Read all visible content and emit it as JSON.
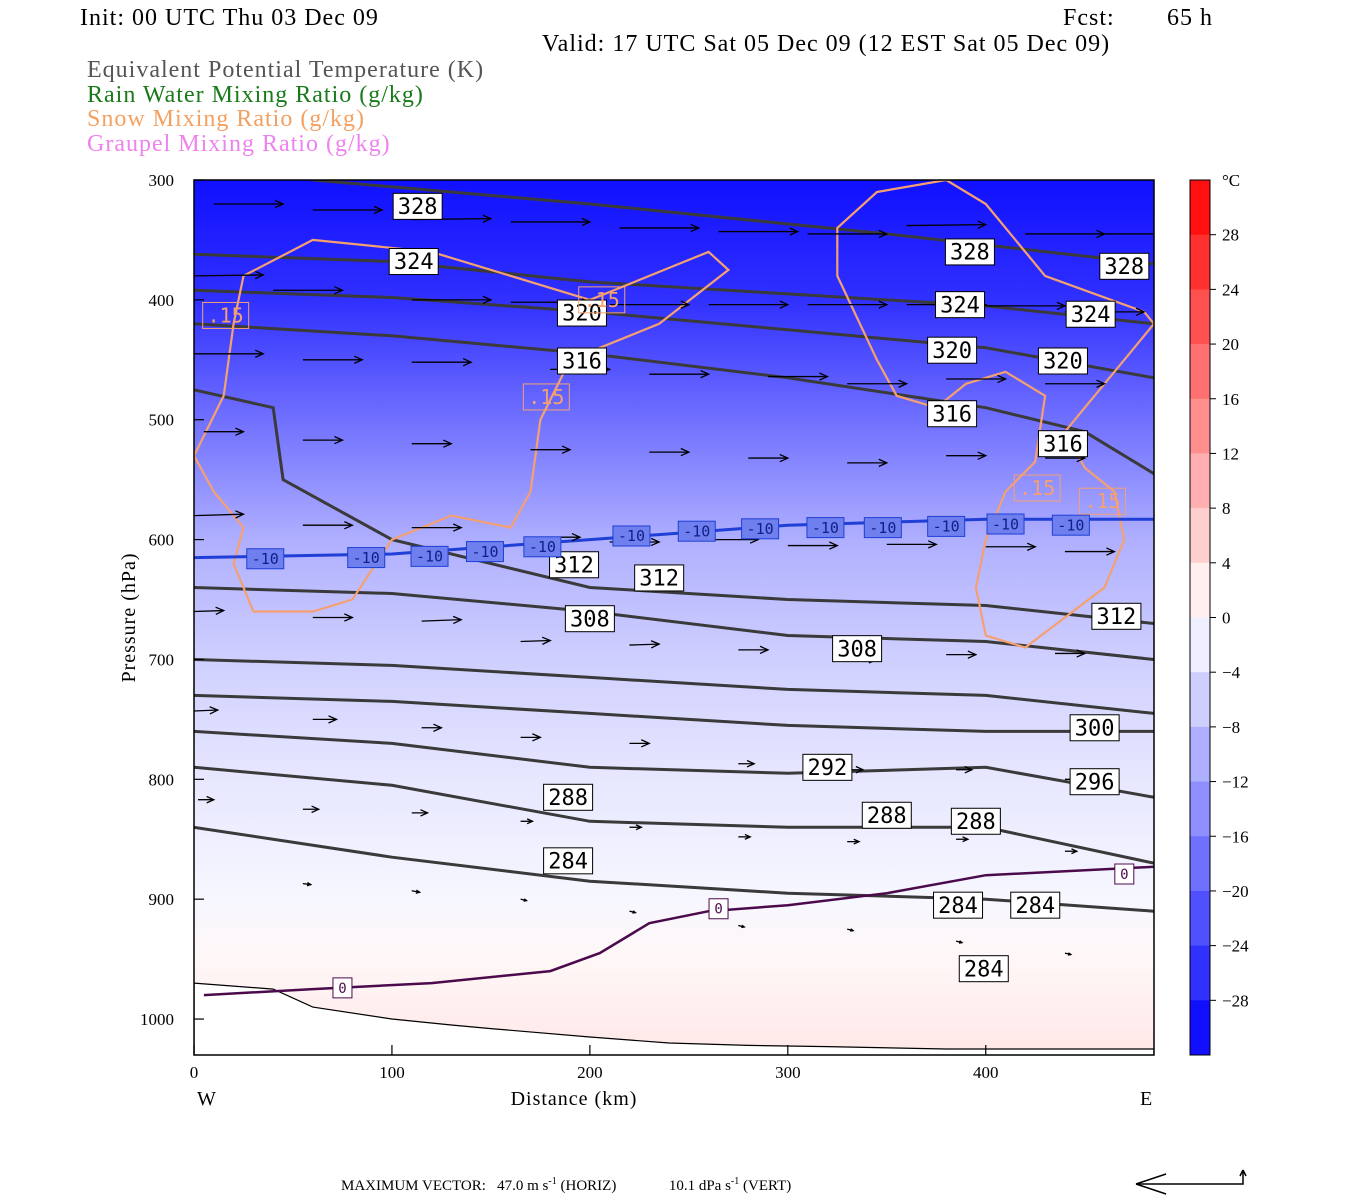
{
  "header": {
    "init": "Init: 00 UTC Thu 03 Dec 09",
    "fcst_label": "Fcst:",
    "fcst_value": "65 h",
    "valid": "Valid: 17 UTC Sat 05 Dec 09 (12 EST Sat 05 Dec 09)",
    "fields": [
      {
        "label": "Equivalent Potential Temperature (K)",
        "color": "#555555"
      },
      {
        "label": "Rain Water Mixing Ratio (g/kg)",
        "color": "#1a7a1a"
      },
      {
        "label": "Snow Mixing Ratio (g/kg)",
        "color": "#f4a060"
      },
      {
        "label": "Graupel Mixing Ratio (g/kg)",
        "color": "#ee82ee"
      }
    ]
  },
  "colors": {
    "theta_e": "#3a3a3a",
    "snow": "#f4a070",
    "isotherm_minus10": "#1f3fd6",
    "isotherm_zero": "#4b0a4b",
    "wind": "#000000"
  },
  "chart_data": {
    "type": "heatmap",
    "xlabel": "Distance (km)",
    "ylabel": "Pressure (hPa)",
    "xlim": [
      0,
      485
    ],
    "ylim": [
      1030,
      300
    ],
    "x_ticks": [
      0,
      100,
      200,
      300,
      400
    ],
    "y_ticks": [
      300,
      400,
      500,
      600,
      700,
      800,
      900,
      1000
    ],
    "x_end_labels": {
      "left": "W",
      "right": "E"
    },
    "colorbar": {
      "unit": "°C",
      "levels": [
        28,
        24,
        20,
        16,
        12,
        8,
        4,
        0,
        -4,
        -8,
        -12,
        -16,
        -20,
        -24,
        -28
      ],
      "range": [
        -32,
        32
      ]
    },
    "temperature_field": [
      {
        "p": 300,
        "t": -30
      },
      {
        "p": 400,
        "t": -26
      },
      {
        "p": 500,
        "t": -18
      },
      {
        "p": 550,
        "t": -14
      },
      {
        "p": 600,
        "t": -10
      },
      {
        "p": 700,
        "t": -6
      },
      {
        "p": 800,
        "t": -3
      },
      {
        "p": 900,
        "t": -1
      },
      {
        "p": 950,
        "t": 1
      },
      {
        "p": 1030,
        "t": 3
      }
    ],
    "theta_e_contours": [
      {
        "value": "328",
        "points": [
          [
            60,
            300
          ],
          [
            200,
            320
          ],
          [
            350,
            345
          ],
          [
            485,
            370
          ]
        ],
        "labels": [
          [
            113,
            322
          ],
          [
            392,
            360
          ],
          [
            470,
            372
          ]
        ]
      },
      {
        "value": "324",
        "points": [
          [
            0,
            362
          ],
          [
            100,
            368
          ],
          [
            200,
            385
          ],
          [
            300,
            395
          ],
          [
            400,
            405
          ],
          [
            485,
            420
          ]
        ],
        "labels": [
          [
            111,
            368
          ],
          [
            387,
            404
          ],
          [
            453,
            412
          ]
        ]
      },
      {
        "value": "320",
        "points": [
          [
            0,
            392
          ],
          [
            100,
            398
          ],
          [
            200,
            410
          ],
          [
            300,
            425
          ],
          [
            400,
            440
          ],
          [
            485,
            465
          ]
        ],
        "labels": [
          [
            196,
            411
          ],
          [
            383,
            442
          ],
          [
            439,
            451
          ]
        ]
      },
      {
        "value": "316",
        "points": [
          [
            0,
            420
          ],
          [
            100,
            430
          ],
          [
            200,
            445
          ],
          [
            300,
            465
          ],
          [
            400,
            490
          ],
          [
            450,
            510
          ],
          [
            485,
            545
          ]
        ],
        "labels": [
          [
            196,
            451
          ],
          [
            383,
            495
          ],
          [
            439,
            520
          ]
        ]
      },
      {
        "value": "312",
        "points": [
          [
            0,
            475
          ],
          [
            40,
            490
          ],
          [
            45,
            550
          ],
          [
            100,
            600
          ],
          [
            200,
            640
          ],
          [
            300,
            650
          ],
          [
            400,
            655
          ],
          [
            485,
            670
          ]
        ],
        "labels": [
          [
            192,
            621
          ],
          [
            235,
            632
          ],
          [
            466,
            664
          ]
        ]
      },
      {
        "value": "308",
        "points": [
          [
            0,
            640
          ],
          [
            100,
            645
          ],
          [
            200,
            660
          ],
          [
            300,
            680
          ],
          [
            400,
            685
          ],
          [
            485,
            700
          ]
        ],
        "labels": [
          [
            200,
            666
          ],
          [
            335,
            691
          ]
        ]
      },
      {
        "value": "300",
        "points": [
          [
            0,
            730
          ],
          [
            100,
            735
          ],
          [
            200,
            745
          ],
          [
            300,
            755
          ],
          [
            400,
            760
          ],
          [
            485,
            760
          ]
        ],
        "labels": [
          [
            455,
            757
          ]
        ]
      },
      {
        "value": "296",
        "points": [
          [
            0,
            700
          ],
          [
            100,
            705
          ],
          [
            200,
            715
          ],
          [
            300,
            725
          ],
          [
            400,
            730
          ],
          [
            485,
            745
          ]
        ],
        "labels": [
          [
            455,
            802
          ]
        ]
      },
      {
        "value": "292",
        "points": [
          [
            0,
            760
          ],
          [
            100,
            770
          ],
          [
            200,
            790
          ],
          [
            300,
            795
          ],
          [
            400,
            790
          ],
          [
            485,
            815
          ]
        ],
        "labels": [
          [
            320,
            790
          ]
        ]
      },
      {
        "value": "288",
        "points": [
          [
            0,
            790
          ],
          [
            100,
            805
          ],
          [
            200,
            835
          ],
          [
            300,
            840
          ],
          [
            400,
            840
          ],
          [
            485,
            870
          ]
        ],
        "labels": [
          [
            189,
            815
          ],
          [
            350,
            830
          ],
          [
            395,
            835
          ]
        ]
      },
      {
        "value": "284",
        "points": [
          [
            0,
            840
          ],
          [
            100,
            865
          ],
          [
            200,
            885
          ],
          [
            300,
            895
          ],
          [
            400,
            900
          ],
          [
            485,
            910
          ]
        ],
        "labels": [
          [
            189,
            868
          ],
          [
            386,
            905
          ],
          [
            425,
            905
          ],
          [
            399,
            958
          ]
        ]
      }
    ],
    "snow_contour_label": ".15",
    "snow_contours": [
      [
        [
          0,
          530
        ],
        [
          15,
          480
        ],
        [
          20,
          420
        ],
        [
          25,
          380
        ],
        [
          60,
          350
        ],
        [
          120,
          360
        ],
        [
          180,
          390
        ],
        [
          200,
          400
        ],
        [
          230,
          380
        ],
        [
          245,
          370
        ],
        [
          260,
          360
        ],
        [
          270,
          375
        ],
        [
          235,
          420
        ],
        [
          190,
          450
        ],
        [
          175,
          500
        ],
        [
          170,
          560
        ],
        [
          160,
          590
        ],
        [
          130,
          580
        ],
        [
          100,
          600
        ],
        [
          80,
          650
        ],
        [
          60,
          660
        ],
        [
          30,
          660
        ],
        [
          20,
          620
        ],
        [
          25,
          590
        ],
        [
          10,
          560
        ],
        [
          0,
          530
        ]
      ],
      [
        [
          325,
          340
        ],
        [
          345,
          310
        ],
        [
          380,
          300
        ],
        [
          400,
          320
        ],
        [
          430,
          380
        ],
        [
          480,
          410
        ],
        [
          485,
          420
        ],
        [
          460,
          470
        ],
        [
          440,
          510
        ],
        [
          450,
          540
        ],
        [
          465,
          560
        ],
        [
          470,
          600
        ],
        [
          460,
          640
        ],
        [
          420,
          690
        ],
        [
          400,
          680
        ],
        [
          395,
          640
        ],
        [
          400,
          600
        ],
        [
          410,
          560
        ],
        [
          425,
          535
        ],
        [
          430,
          480
        ],
        [
          410,
          460
        ],
        [
          390,
          470
        ],
        [
          375,
          490
        ],
        [
          355,
          480
        ],
        [
          345,
          450
        ],
        [
          325,
          380
        ],
        [
          325,
          340
        ]
      ]
    ],
    "snow_labels": [
      [
        16,
        413
      ],
      [
        206,
        400
      ],
      [
        178,
        481
      ],
      [
        426,
        557
      ],
      [
        459,
        568
      ]
    ],
    "isotherm_minus10": {
      "value": "-10",
      "points": [
        [
          0,
          615
        ],
        [
          100,
          612
        ],
        [
          200,
          600
        ],
        [
          300,
          588
        ],
        [
          400,
          583
        ],
        [
          485,
          583
        ]
      ],
      "labels": [
        [
          36,
          616
        ],
        [
          87,
          615
        ],
        [
          119,
          614
        ],
        [
          147,
          610
        ],
        [
          176,
          606
        ],
        [
          221,
          597
        ],
        [
          254,
          593
        ],
        [
          286,
          591
        ],
        [
          319,
          590
        ],
        [
          348,
          590
        ],
        [
          380,
          589
        ],
        [
          410,
          587
        ],
        [
          443,
          588
        ]
      ]
    },
    "isotherm_zero": {
      "value": "0",
      "points": [
        [
          5,
          980
        ],
        [
          60,
          975
        ],
        [
          120,
          970
        ],
        [
          180,
          960
        ],
        [
          205,
          945
        ],
        [
          230,
          920
        ],
        [
          260,
          910
        ],
        [
          300,
          905
        ],
        [
          350,
          895
        ],
        [
          400,
          880
        ],
        [
          485,
          873
        ]
      ],
      "labels": [
        [
          75,
          974
        ],
        [
          265,
          908
        ],
        [
          470,
          879
        ]
      ]
    },
    "ground": [
      [
        0,
        970
      ],
      [
        40,
        975
      ],
      [
        60,
        990
      ],
      [
        100,
        1000
      ],
      [
        130,
        1005
      ],
      [
        150,
        1008
      ],
      [
        200,
        1015
      ],
      [
        240,
        1020
      ],
      [
        280,
        1022
      ],
      [
        320,
        1023
      ],
      [
        380,
        1025
      ],
      [
        485,
        1025
      ]
    ],
    "wind_vectors": [
      [
        10,
        320,
        35,
        0
      ],
      [
        60,
        325,
        35,
        0
      ],
      [
        110,
        333,
        40,
        -2
      ],
      [
        160,
        335,
        40,
        0
      ],
      [
        215,
        340,
        40,
        0
      ],
      [
        265,
        343,
        40,
        0
      ],
      [
        310,
        345,
        40,
        0
      ],
      [
        360,
        338,
        40,
        -2
      ],
      [
        420,
        345,
        40,
        0
      ],
      [
        460,
        345,
        40,
        0
      ],
      [
        0,
        380,
        35,
        -2
      ],
      [
        40,
        392,
        35,
        0
      ],
      [
        110,
        400,
        40,
        0
      ],
      [
        160,
        402,
        40,
        0
      ],
      [
        210,
        404,
        40,
        0
      ],
      [
        260,
        404,
        40,
        0
      ],
      [
        310,
        404,
        40,
        0
      ],
      [
        360,
        404,
        40,
        0
      ],
      [
        400,
        405,
        40,
        0
      ],
      [
        440,
        410,
        40,
        0
      ],
      [
        0,
        445,
        35,
        0
      ],
      [
        55,
        450,
        30,
        0
      ],
      [
        110,
        452,
        30,
        0
      ],
      [
        180,
        458,
        30,
        0
      ],
      [
        230,
        462,
        30,
        0
      ],
      [
        290,
        464,
        30,
        0
      ],
      [
        330,
        470,
        30,
        0
      ],
      [
        380,
        466,
        30,
        0
      ],
      [
        430,
        470,
        30,
        0
      ],
      [
        5,
        510,
        20,
        0
      ],
      [
        55,
        517,
        20,
        0
      ],
      [
        110,
        520,
        20,
        0
      ],
      [
        170,
        525,
        20,
        0
      ],
      [
        230,
        527,
        20,
        0
      ],
      [
        280,
        532,
        20,
        0
      ],
      [
        330,
        536,
        20,
        0
      ],
      [
        380,
        530,
        20,
        0
      ],
      [
        430,
        532,
        20,
        0
      ],
      [
        0,
        580,
        25,
        -3
      ],
      [
        55,
        588,
        25,
        0
      ],
      [
        110,
        590,
        25,
        0
      ],
      [
        170,
        598,
        25,
        0
      ],
      [
        210,
        602,
        25,
        0
      ],
      [
        260,
        600,
        25,
        0
      ],
      [
        300,
        605,
        25,
        0
      ],
      [
        350,
        604,
        25,
        0
      ],
      [
        400,
        606,
        25,
        0
      ],
      [
        440,
        610,
        25,
        0
      ],
      [
        0,
        660,
        15,
        -2
      ],
      [
        60,
        665,
        20,
        0
      ],
      [
        115,
        668,
        20,
        -3
      ],
      [
        165,
        685,
        15,
        -2
      ],
      [
        220,
        688,
        15,
        -2
      ],
      [
        275,
        692,
        15,
        0
      ],
      [
        330,
        700,
        15,
        0
      ],
      [
        380,
        696,
        15,
        0
      ],
      [
        435,
        695,
        15,
        0
      ],
      [
        0,
        743,
        12,
        -2
      ],
      [
        60,
        750,
        12,
        0
      ],
      [
        115,
        757,
        10,
        0
      ],
      [
        165,
        765,
        10,
        0
      ],
      [
        220,
        770,
        10,
        0
      ],
      [
        275,
        787,
        8,
        0
      ],
      [
        330,
        792,
        8,
        0
      ],
      [
        385,
        792,
        8,
        0
      ],
      [
        440,
        800,
        8,
        0
      ],
      [
        2,
        817,
        8,
        0
      ],
      [
        55,
        825,
        8,
        0
      ],
      [
        110,
        828,
        8,
        0
      ],
      [
        165,
        835,
        6,
        0
      ],
      [
        220,
        840,
        6,
        0
      ],
      [
        275,
        848,
        6,
        0
      ],
      [
        330,
        852,
        6,
        0
      ],
      [
        385,
        850,
        6,
        0
      ],
      [
        440,
        860,
        6,
        0
      ],
      [
        55,
        887,
        4,
        2
      ],
      [
        110,
        893,
        4,
        3
      ],
      [
        165,
        900,
        3,
        3
      ],
      [
        220,
        910,
        3,
        3
      ],
      [
        275,
        922,
        3,
        3
      ],
      [
        330,
        925,
        3,
        3
      ],
      [
        385,
        935,
        3,
        3
      ],
      [
        440,
        945,
        3,
        3
      ]
    ],
    "maximum_vector": {
      "label": "MAXIMUM VECTOR:",
      "horiz": "47.0 m s",
      "horiz_exp": "-1",
      "horiz_tag": "(HORIZ)",
      "vert": "10.1 dPa s",
      "vert_exp": "-1",
      "vert_tag": "(VERT)"
    }
  }
}
